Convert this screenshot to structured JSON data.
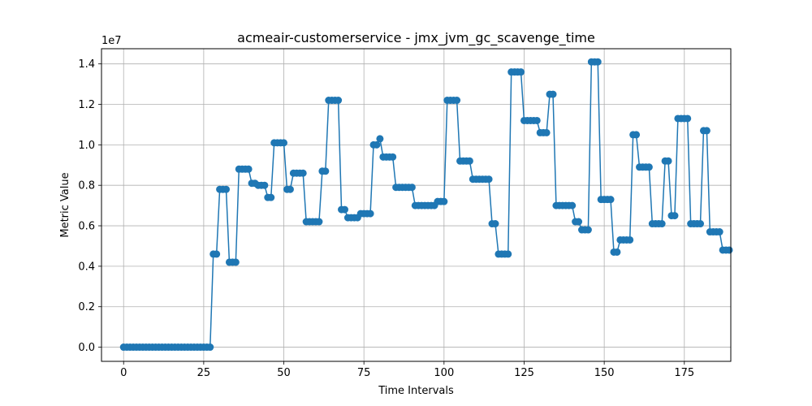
{
  "chart_data": {
    "type": "line",
    "title": "acmeair-customerservice - jmx_jvm_gc_scavenge_time",
    "xlabel": "Time Intervals",
    "ylabel": "Metric Value",
    "y_offset_text": "1e7",
    "xlim": [
      -6.9,
      189.5
    ],
    "ylim": [
      -700000,
      14750000
    ],
    "x_ticks": [
      0,
      25,
      50,
      75,
      100,
      125,
      150,
      175
    ],
    "y_ticks": [
      0,
      2000000,
      4000000,
      6000000,
      8000000,
      10000000,
      12000000,
      14000000
    ],
    "y_tick_labels": [
      "0.0",
      "0.2",
      "0.4",
      "0.6",
      "0.8",
      "1.0",
      "1.2",
      "1.4"
    ],
    "grid": true,
    "series": [
      {
        "color": "#1f77b4",
        "marker": "circle",
        "values": [
          0,
          0,
          0,
          0,
          0,
          0,
          0,
          0,
          0,
          0,
          0,
          0,
          0,
          0,
          0,
          0,
          0,
          0,
          0,
          0,
          0,
          0,
          0,
          0,
          0,
          0,
          0,
          0,
          4600000,
          4600000,
          7800000,
          7800000,
          7800000,
          4200000,
          4200000,
          4200000,
          8800000,
          8800000,
          8800000,
          8800000,
          8100000,
          8100000,
          8000000,
          8000000,
          8000000,
          7400000,
          7400000,
          10100000,
          10100000,
          10100000,
          10100000,
          7800000,
          7800000,
          8600000,
          8600000,
          8600000,
          8600000,
          6200000,
          6200000,
          6200000,
          6200000,
          6200000,
          8700000,
          8700000,
          12200000,
          12200000,
          12200000,
          12200000,
          6800000,
          6800000,
          6400000,
          6400000,
          6400000,
          6400000,
          6600000,
          6600000,
          6600000,
          6600000,
          10000000,
          10000000,
          10300000,
          9400000,
          9400000,
          9400000,
          9400000,
          7900000,
          7900000,
          7900000,
          7900000,
          7900000,
          7900000,
          7000000,
          7000000,
          7000000,
          7000000,
          7000000,
          7000000,
          7000000,
          7200000,
          7200000,
          7200000,
          12200000,
          12200000,
          12200000,
          12200000,
          9200000,
          9200000,
          9200000,
          9200000,
          8300000,
          8300000,
          8300000,
          8300000,
          8300000,
          8300000,
          6100000,
          6100000,
          4600000,
          4600000,
          4600000,
          4600000,
          13600000,
          13600000,
          13600000,
          13600000,
          11200000,
          11200000,
          11200000,
          11200000,
          11200000,
          10600000,
          10600000,
          10600000,
          12500000,
          12500000,
          7000000,
          7000000,
          7000000,
          7000000,
          7000000,
          7000000,
          6200000,
          6200000,
          5800000,
          5800000,
          5800000,
          14100000,
          14100000,
          14100000,
          7300000,
          7300000,
          7300000,
          7300000,
          4700000,
          4700000,
          5300000,
          5300000,
          5300000,
          5300000,
          10500000,
          10500000,
          8900000,
          8900000,
          8900000,
          8900000,
          6100000,
          6100000,
          6100000,
          6100000,
          9200000,
          9200000,
          6500000,
          6500000,
          11300000,
          11300000,
          11300000,
          11300000,
          6100000,
          6100000,
          6100000,
          6100000,
          10700000,
          10700000,
          5700000,
          5700000,
          5700000,
          5700000,
          4800000,
          4800000,
          4800000
        ]
      }
    ]
  }
}
